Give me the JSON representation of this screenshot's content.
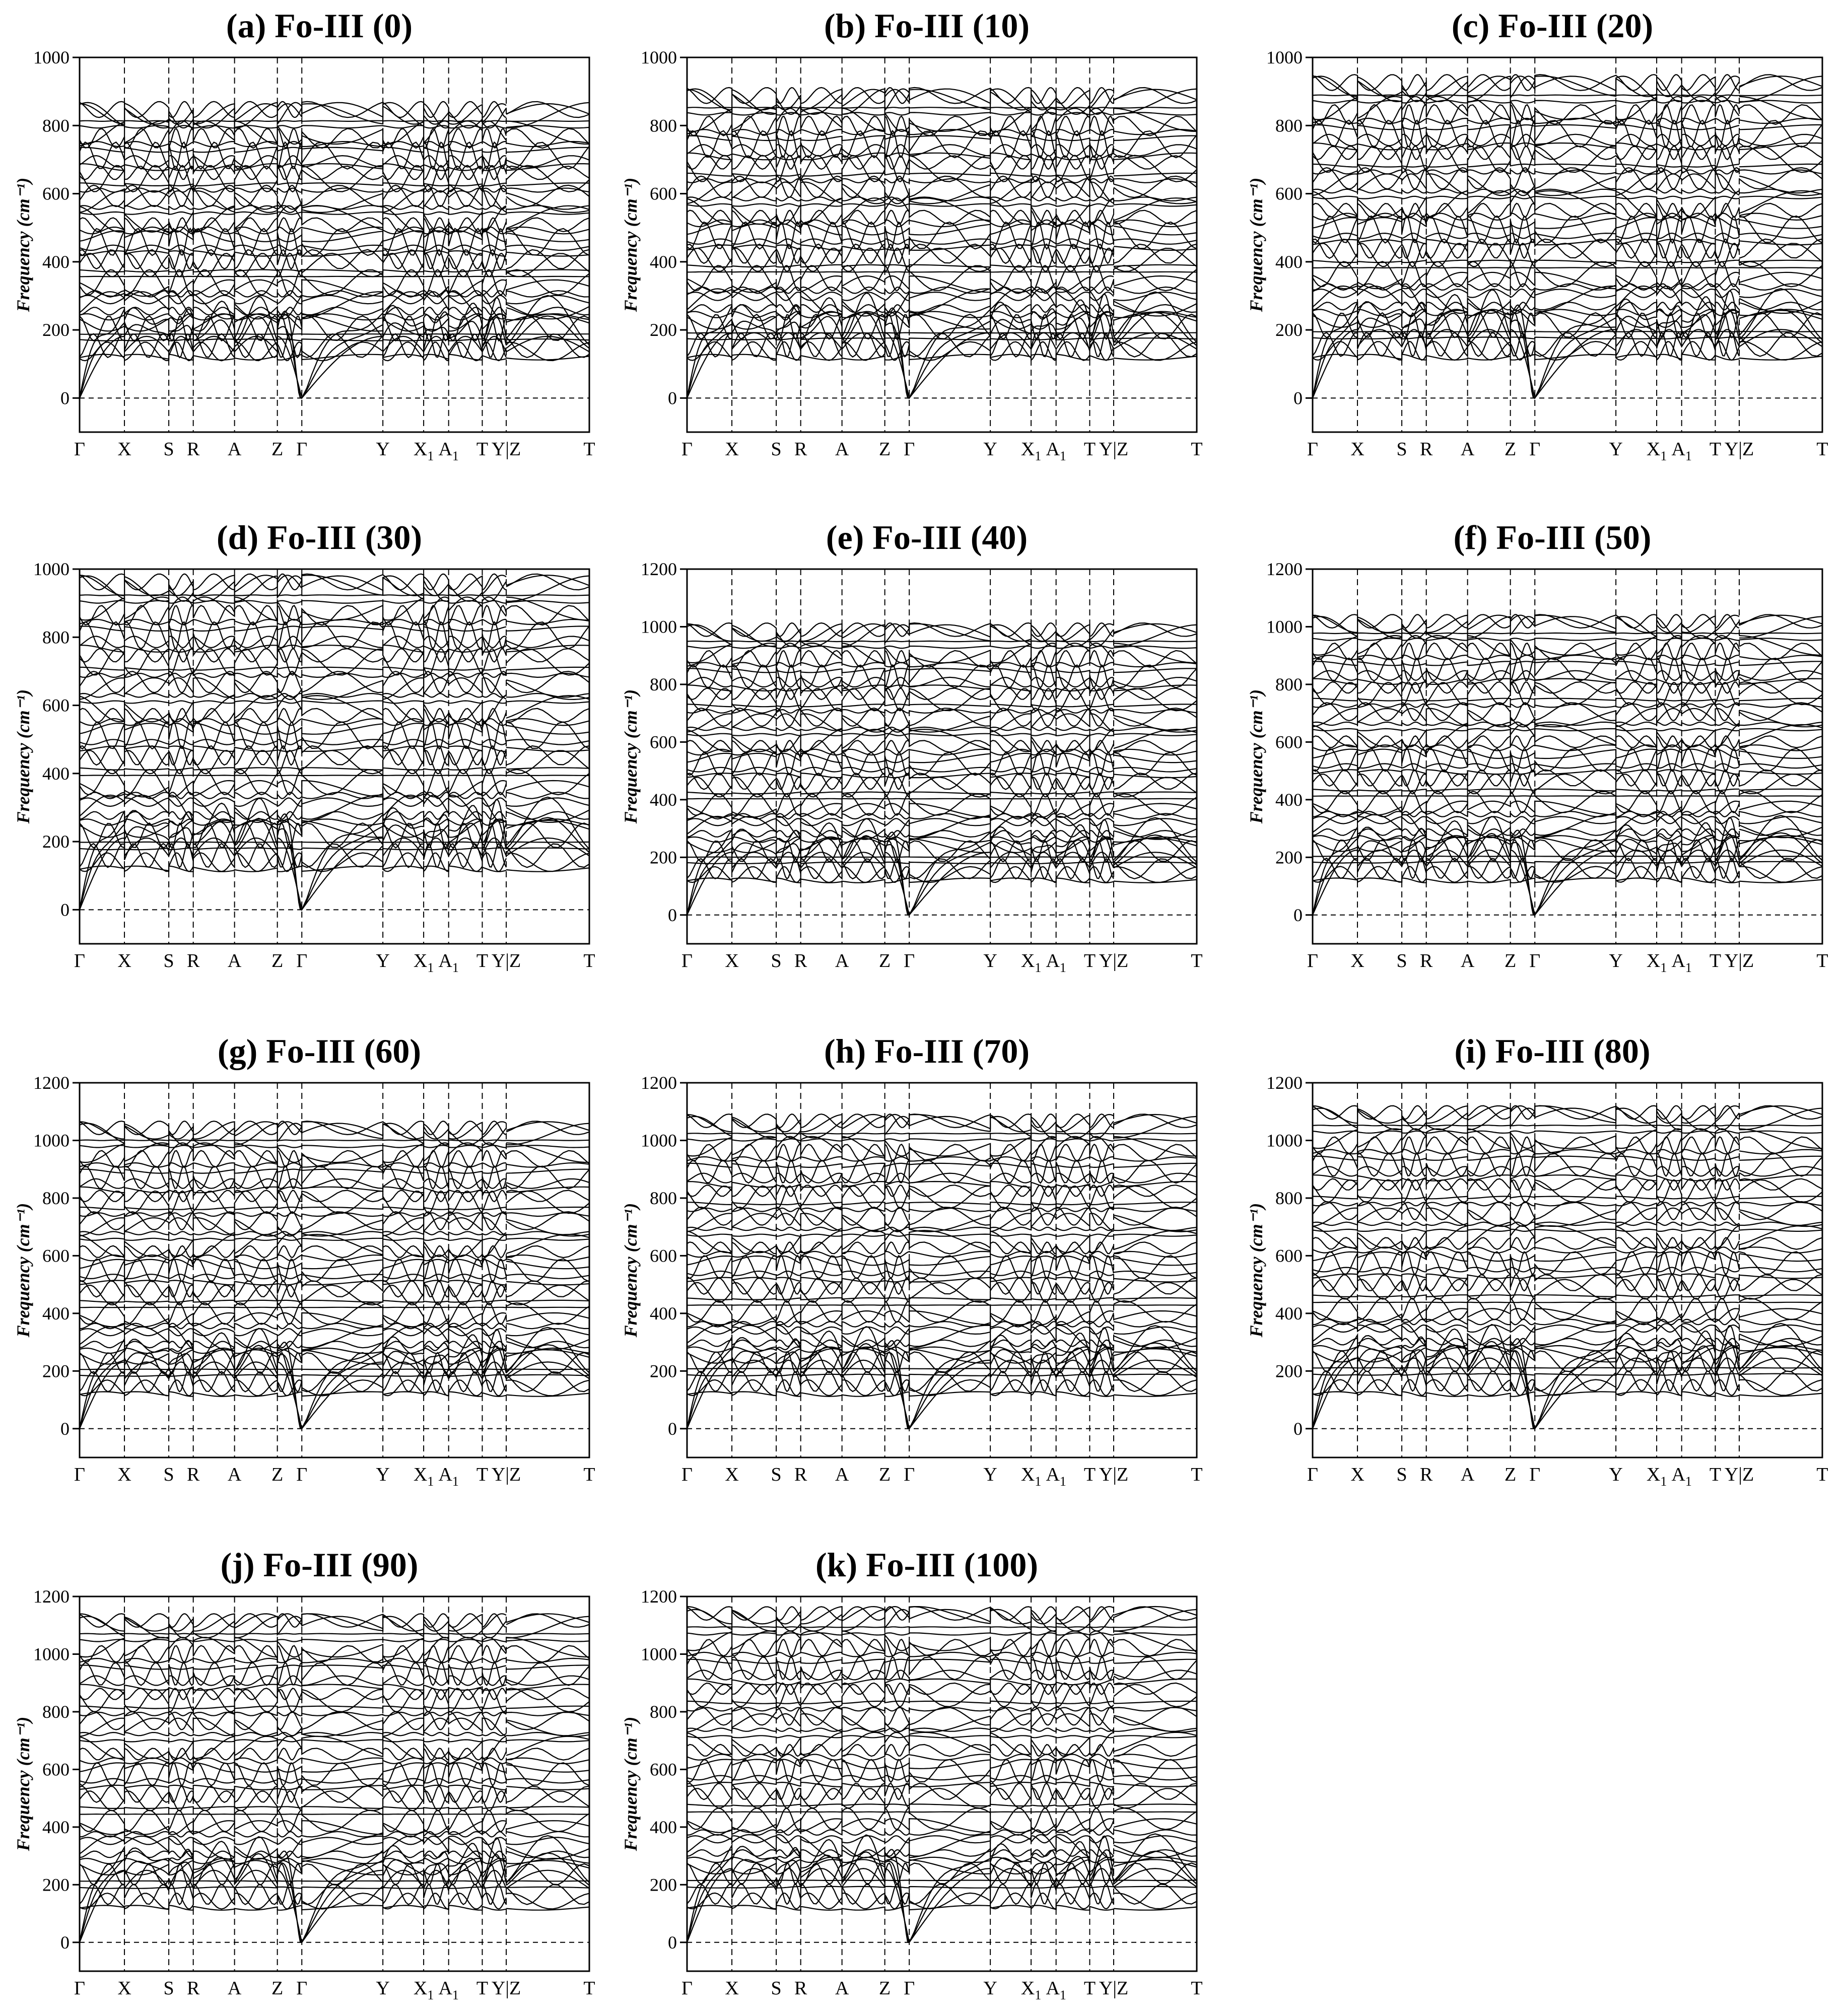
{
  "figure": {
    "panels": [
      {
        "title": "(a) Fo-III (0)",
        "ymax": 1000,
        "yticks": [
          0,
          200,
          400,
          600,
          800,
          1000
        ],
        "top": 864
      },
      {
        "title": "(b) Fo-III (10)",
        "ymax": 1000,
        "yticks": [
          0,
          200,
          400,
          600,
          800,
          1000
        ],
        "top": 906
      },
      {
        "title": "(c) Fo-III (20)",
        "ymax": 1000,
        "yticks": [
          0,
          200,
          400,
          600,
          800,
          1000
        ],
        "top": 945
      },
      {
        "title": "(d) Fo-III (30)",
        "ymax": 1000,
        "yticks": [
          0,
          200,
          400,
          600,
          800,
          1000
        ],
        "top": 982
      },
      {
        "title": "(e) Fo-III (40)",
        "ymax": 1200,
        "yticks": [
          0,
          200,
          400,
          600,
          800,
          1000,
          1200
        ],
        "top": 1010
      },
      {
        "title": "(f) Fo-III (50)",
        "ymax": 1200,
        "yticks": [
          0,
          200,
          400,
          600,
          800,
          1000,
          1200
        ],
        "top": 1040
      },
      {
        "title": "(g) Fo-III (60)",
        "ymax": 1200,
        "yticks": [
          0,
          200,
          400,
          600,
          800,
          1000,
          1200
        ],
        "top": 1065
      },
      {
        "title": "(h) Fo-III (70)",
        "ymax": 1200,
        "yticks": [
          0,
          200,
          400,
          600,
          800,
          1000,
          1200
        ],
        "top": 1090
      },
      {
        "title": "(i) Fo-III (80)",
        "ymax": 1200,
        "yticks": [
          0,
          200,
          400,
          600,
          800,
          1000,
          1200
        ],
        "top": 1120
      },
      {
        "title": "(j) Fo-III (90)",
        "ymax": 1200,
        "yticks": [
          0,
          200,
          400,
          600,
          800,
          1000,
          1200
        ],
        "top": 1140
      },
      {
        "title": "(k) Fo-III (100)",
        "ymax": 1200,
        "yticks": [
          0,
          200,
          400,
          600,
          800,
          1000,
          1200
        ],
        "top": 1165
      }
    ],
    "kpath_labels": [
      "Γ",
      "X",
      "S",
      "R",
      "A",
      "Z",
      "Γ",
      "Y",
      "X1",
      "A1",
      "T",
      "Y|Z",
      "T"
    ],
    "y_axis_title": "Frequency (cm⁻¹)"
  },
  "chart_data": {
    "type": "line",
    "description_kind": "phonon dispersion band structures, 11 panels",
    "xlabel": "",
    "ylabel": "Frequency (cm⁻¹)",
    "x_tick_labels": [
      "Γ",
      "X",
      "S",
      "R",
      "A",
      "Z",
      "Γ",
      "Y",
      "X1",
      "A1",
      "T",
      "Y|Z",
      "T"
    ],
    "panels": [
      {
        "title": "(a) Fo-III (0)",
        "ylim": [
          0,
          1000
        ],
        "max_frequency": 864
      },
      {
        "title": "(b) Fo-III (10)",
        "ylim": [
          0,
          1000
        ],
        "max_frequency": 906
      },
      {
        "title": "(c) Fo-III (20)",
        "ylim": [
          0,
          1000
        ],
        "max_frequency": 945
      },
      {
        "title": "(d) Fo-III (30)",
        "ylim": [
          0,
          1000
        ],
        "max_frequency": 982
      },
      {
        "title": "(e) Fo-III (40)",
        "ylim": [
          0,
          1200
        ],
        "max_frequency": 1010
      },
      {
        "title": "(f) Fo-III (50)",
        "ylim": [
          0,
          1200
        ],
        "max_frequency": 1040
      },
      {
        "title": "(g) Fo-III (60)",
        "ylim": [
          0,
          1200
        ],
        "max_frequency": 1065
      },
      {
        "title": "(h) Fo-III (70)",
        "ylim": [
          0,
          1200
        ],
        "max_frequency": 1090
      },
      {
        "title": "(i) Fo-III (80)",
        "ylim": [
          0,
          1200
        ],
        "max_frequency": 1120
      },
      {
        "title": "(j) Fo-III (90)",
        "ylim": [
          0,
          1200
        ],
        "max_frequency": 1140
      },
      {
        "title": "(k) Fo-III (100)",
        "ylim": [
          0,
          1200
        ],
        "max_frequency": 1165
      }
    ],
    "grid": false,
    "legend": "none"
  }
}
